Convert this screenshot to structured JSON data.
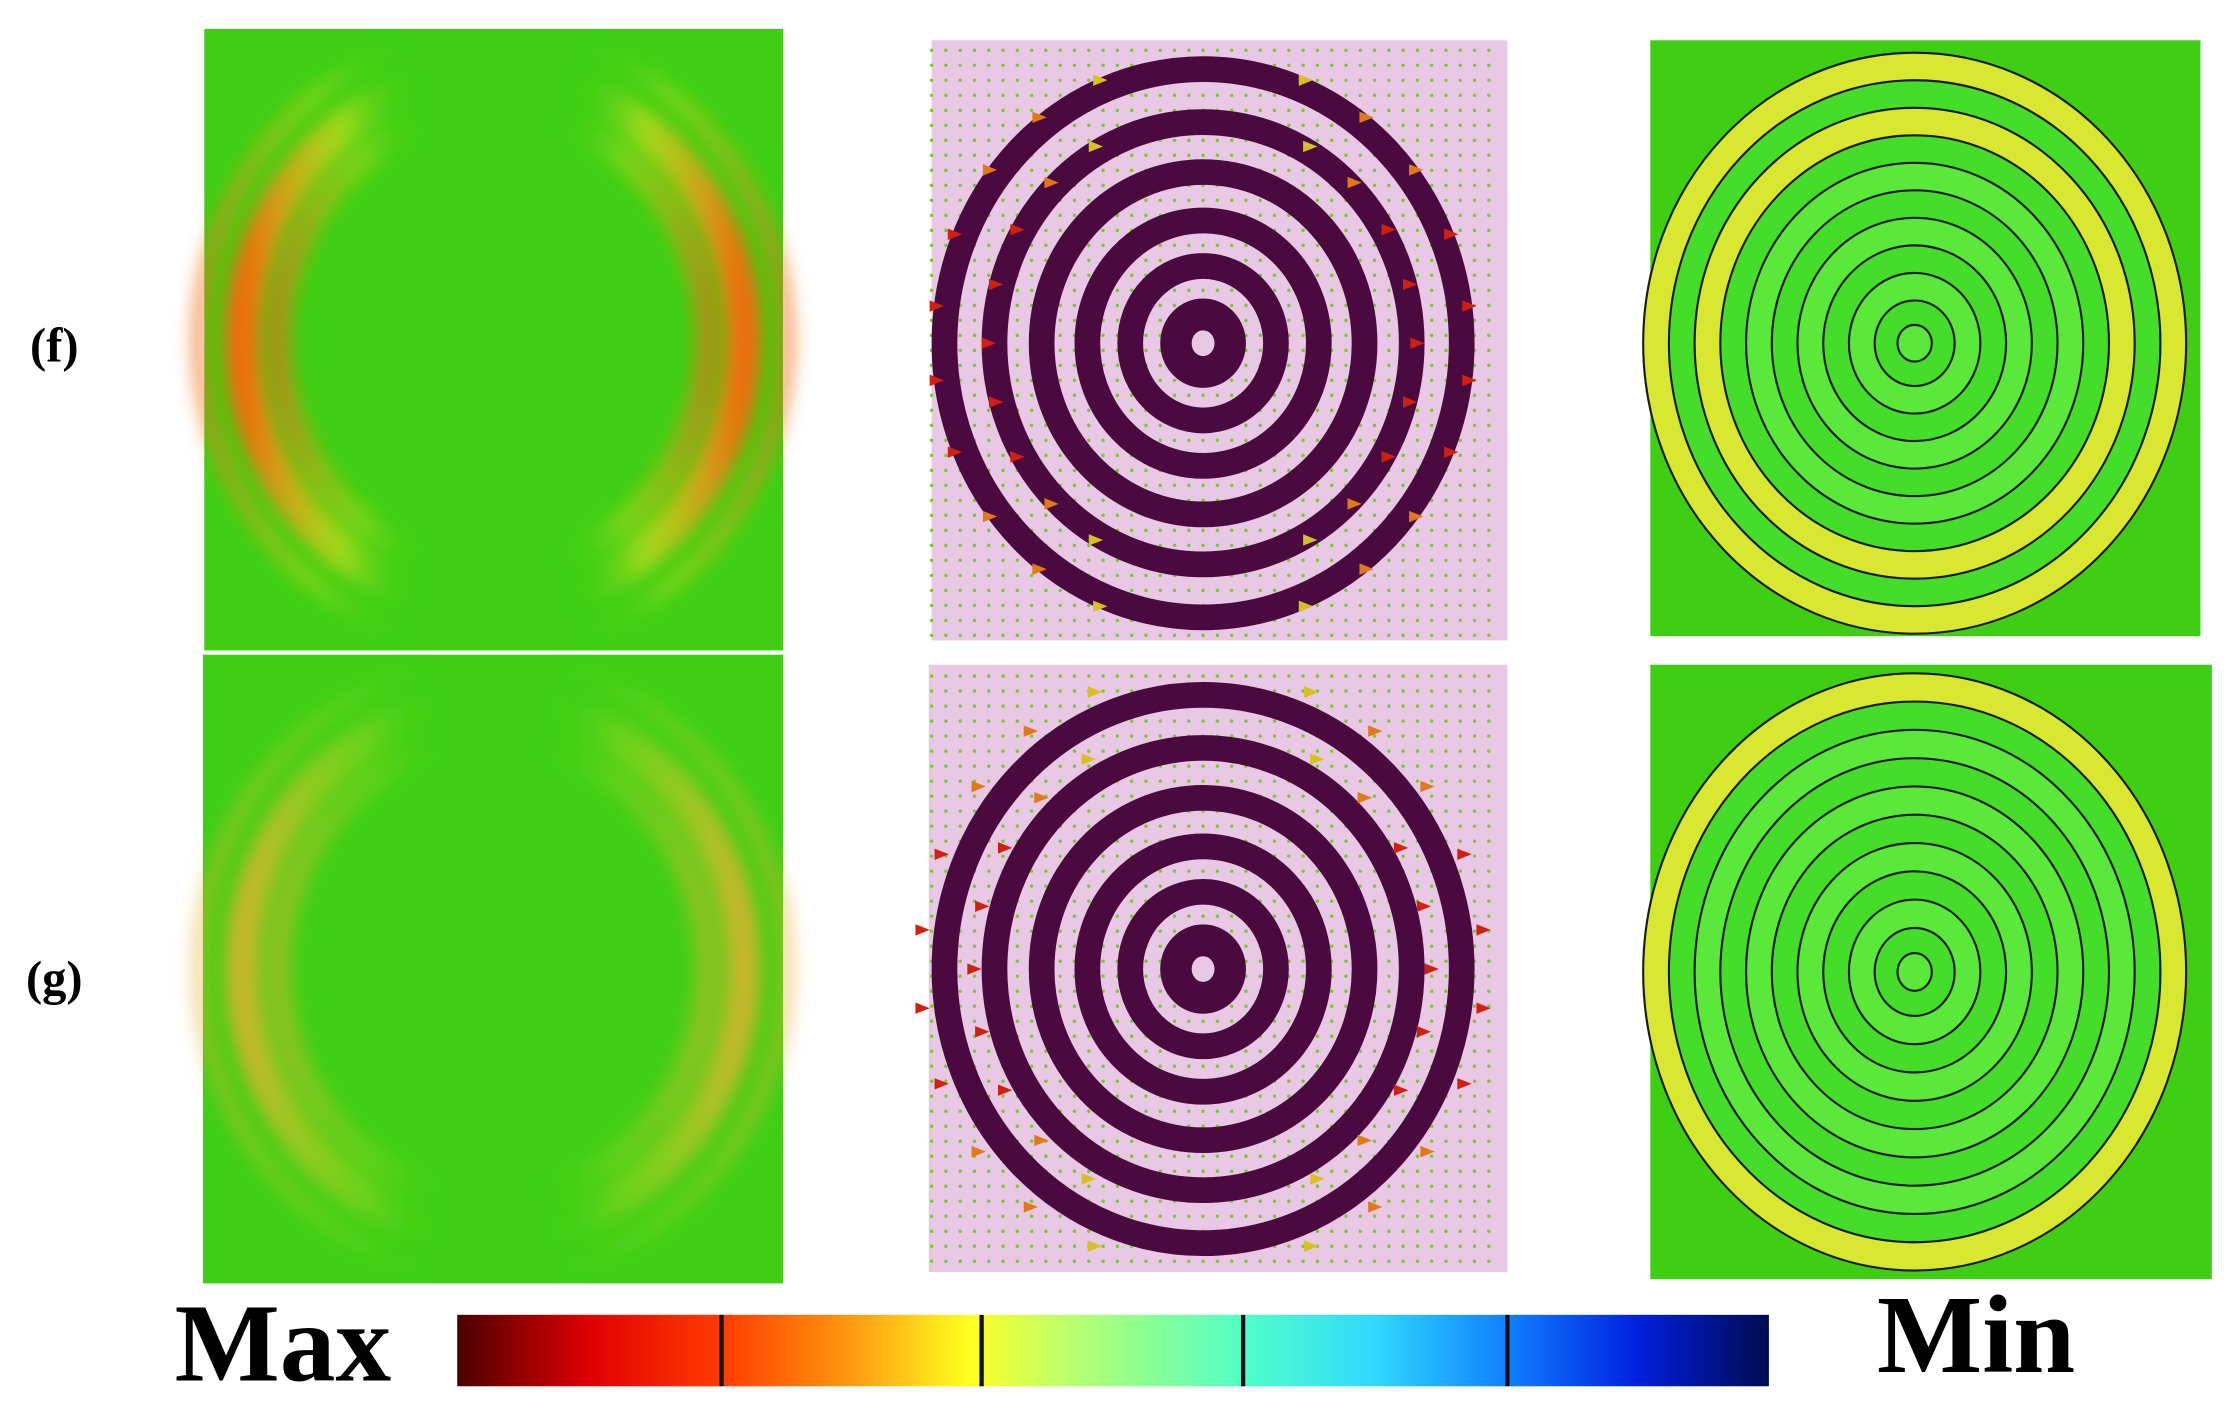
{
  "labels": {
    "row_f": "(f)",
    "row_g": "(g)"
  },
  "colorbar": {
    "max": "Max",
    "min": "Min"
  }
}
